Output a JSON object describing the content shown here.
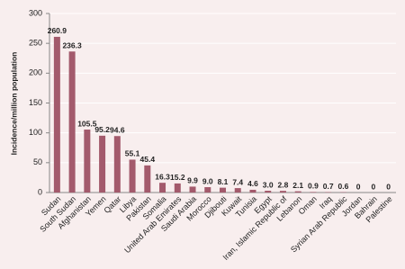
{
  "chart_data": {
    "type": "bar",
    "y_label": "Incidence/million population",
    "categories": [
      "Sudan",
      "South Sudan",
      "Afghanistan",
      "Yemen",
      "Qatar",
      "Libya",
      "Pakistan",
      "Somalia",
      "United Arab Emirates",
      "Saudi Arabia",
      "Morocco",
      "Djibouti",
      "Kuwait",
      "Tunisia",
      "Egypt",
      "Iran, Islamic Republic of",
      "Lebanon",
      "Oman",
      "Iraq",
      "Syrian Arab Republic",
      "Jordan",
      "Bahrain",
      "Palestine"
    ],
    "values": [
      260.9,
      236.3,
      105.5,
      95.2,
      94.6,
      55.1,
      45.4,
      16.3,
      15.2,
      9.9,
      9.0,
      8.1,
      7.4,
      4.6,
      3.0,
      2.8,
      2.1,
      0.9,
      0.7,
      0.6,
      0,
      0,
      0
    ],
    "value_labels": [
      "260.9",
      "236.3",
      "105.5",
      "95.2",
      "94.6",
      "55.1",
      "45.4",
      "16.3",
      "15.2",
      "9.9",
      "9.0",
      "8.1",
      "7.4",
      "4.6",
      "3.0",
      "2.8",
      "2.1",
      "0.9",
      "0.7",
      "0.6",
      "0",
      "0",
      "0"
    ],
    "color": "#a35a6c",
    "ylim": [
      0,
      300
    ],
    "yticks": [
      0,
      50,
      100,
      150,
      200,
      250,
      300
    ],
    "grid": true
  }
}
